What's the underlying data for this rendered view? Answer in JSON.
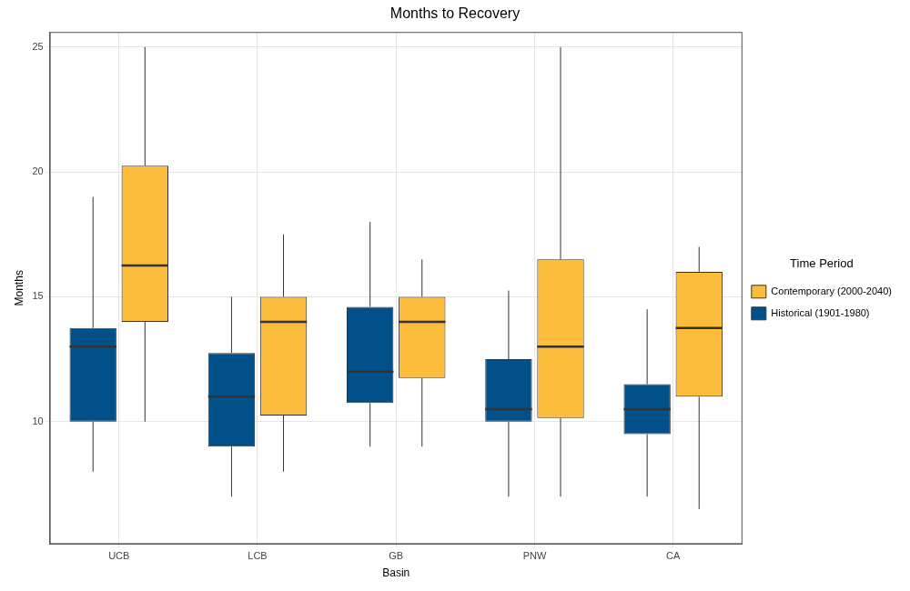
{
  "chart_data": {
    "type": "box",
    "title": "Months to Recovery",
    "x_label": "Basin",
    "y_label": "Months",
    "categories": [
      "UCB",
      "LCB",
      "GB",
      "PNW",
      "CA"
    ],
    "legend_title": "Time Period",
    "legend": "right",
    "grid": true,
    "ylim": [
      5.1,
      25.6
    ],
    "yticks": [
      10,
      15,
      20,
      25
    ],
    "series": [
      {
        "name": "Historical (1901-1980)",
        "color": "#02508a",
        "values": [
          {
            "min": 8,
            "q1": 10,
            "median": 13,
            "q3": 13.75,
            "max": 19
          },
          {
            "min": 7,
            "q1": 9,
            "median": 11,
            "q3": 12.75,
            "max": 15
          },
          {
            "min": 9,
            "q1": 10.75,
            "median": 12,
            "q3": 14.6,
            "max": 18
          },
          {
            "min": 7,
            "q1": 10,
            "median": 10.5,
            "q3": 12.5,
            "max": 15.25
          },
          {
            "min": 7,
            "q1": 9.5,
            "median": 10.5,
            "q3": 11.5,
            "max": 14.5
          }
        ]
      },
      {
        "name": "Contemporary (2000-2040)",
        "color": "#fcbd3c",
        "values": [
          {
            "min": 10,
            "q1": 14,
            "median": 16.25,
            "q3": 20.25,
            "max": 25
          },
          {
            "min": 8,
            "q1": 10.25,
            "median": 14,
            "q3": 15,
            "max": 17.5
          },
          {
            "min": 9,
            "q1": 11.75,
            "median": 14,
            "q3": 15,
            "max": 16.5
          },
          {
            "min": 7,
            "q1": 10.15,
            "median": 13,
            "q3": 16.5,
            "max": 25
          },
          {
            "min": 6.5,
            "q1": 11,
            "median": 13.75,
            "q3": 16,
            "max": 17
          }
        ]
      }
    ]
  }
}
